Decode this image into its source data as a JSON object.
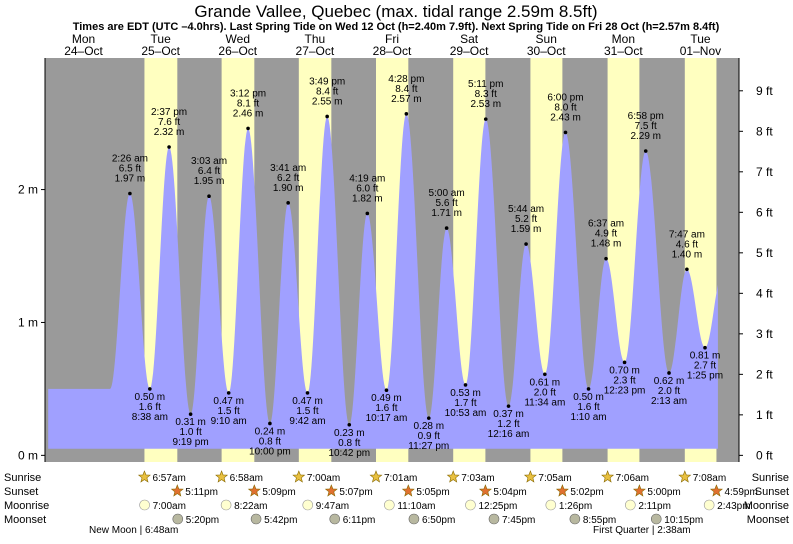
{
  "chart_data": {
    "type": "area",
    "title": "Grande Vallee, Quebec (max. tidal range 2.59m 8.5ft)",
    "subtitle": "Times are EDT (UTC –4.0hrs). Last Spring Tide on Wed 12 Oct (h=2.40m 7.9ft). Next Spring Tide on Fri 28 Oct (h=2.57m 8.4ft)",
    "ylabel_left": "m",
    "ylabel_right": "ft",
    "ylim_m": [
      -0.05,
      2.99
    ],
    "xlim_hours": [
      0,
      216
    ],
    "left_ticks": [
      "0 m",
      "1 m",
      "2 m"
    ],
    "left_tick_values": [
      0,
      1,
      2
    ],
    "right_ticks": [
      "0 ft",
      "1 ft",
      "2 ft",
      "3 ft",
      "4 ft",
      "5 ft",
      "6 ft",
      "7 ft",
      "8 ft",
      "9 ft"
    ],
    "right_tick_values": [
      0,
      1,
      2,
      3,
      4,
      5,
      6,
      7,
      8,
      9
    ],
    "days": [
      {
        "dow": "Mon",
        "date": "24–Oct",
        "color": "red"
      },
      {
        "dow": "Tue",
        "date": "25–Oct",
        "color": "black"
      },
      {
        "dow": "Wed",
        "date": "26–Oct",
        "color": "black"
      },
      {
        "dow": "Thu",
        "date": "27–Oct",
        "color": "black"
      },
      {
        "dow": "Fri",
        "date": "28–Oct",
        "color": "black"
      },
      {
        "dow": "Sat",
        "date": "29–Oct",
        "color": "black"
      },
      {
        "dow": "Sun",
        "date": "30–Oct",
        "color": "red"
      },
      {
        "dow": "Mon",
        "date": "31–Oct",
        "color": "black"
      },
      {
        "dow": "Tue",
        "date": "01–Nov",
        "color": "black"
      }
    ],
    "tides": [
      {
        "hour": 26.43,
        "m": 1.97,
        "time": "2:26 am",
        "ft": "6.5 ft",
        "mlabel": "1.97 m",
        "type": "high"
      },
      {
        "hour": 32.63,
        "m": 0.5,
        "time": "8:38 am",
        "ft": "1.6 ft",
        "mlabel": "0.50 m",
        "type": "low"
      },
      {
        "hour": 38.62,
        "m": 2.32,
        "time": "2:37 pm",
        "ft": "7.6 ft",
        "mlabel": "2.32 m",
        "type": "high"
      },
      {
        "hour": 45.32,
        "m": 0.31,
        "time": "9:19 pm",
        "ft": "1.0 ft",
        "mlabel": "0.31 m",
        "type": "low"
      },
      {
        "hour": 51.05,
        "m": 1.95,
        "time": "3:03 am",
        "ft": "6.4 ft",
        "mlabel": "1.95 m",
        "type": "high"
      },
      {
        "hour": 57.17,
        "m": 0.47,
        "time": "9:10 am",
        "ft": "1.5 ft",
        "mlabel": "0.47 m",
        "type": "low"
      },
      {
        "hour": 63.2,
        "m": 2.46,
        "time": "3:12 pm",
        "ft": "8.1 ft",
        "mlabel": "2.46 m",
        "type": "high"
      },
      {
        "hour": 70.0,
        "m": 0.24,
        "time": "10:00 pm",
        "ft": "0.8 ft",
        "mlabel": "0.24 m",
        "type": "low"
      },
      {
        "hour": 75.68,
        "m": 1.9,
        "time": "3:41 am",
        "ft": "6.2 ft",
        "mlabel": "1.90 m",
        "type": "high"
      },
      {
        "hour": 81.7,
        "m": 0.47,
        "time": "9:42 am",
        "ft": "1.5 ft",
        "mlabel": "0.47 m",
        "type": "low"
      },
      {
        "hour": 87.82,
        "m": 2.55,
        "time": "3:49 pm",
        "ft": "8.4 ft",
        "mlabel": "2.55 m",
        "type": "high"
      },
      {
        "hour": 94.7,
        "m": 0.23,
        "time": "10:42 pm",
        "ft": "0.8 ft",
        "mlabel": "0.23 m",
        "type": "low"
      },
      {
        "hour": 100.32,
        "m": 1.82,
        "time": "4:19 am",
        "ft": "6.0 ft",
        "mlabel": "1.82 m",
        "type": "high"
      },
      {
        "hour": 106.28,
        "m": 0.49,
        "time": "10:17 am",
        "ft": "1.6 ft",
        "mlabel": "0.49 m",
        "type": "low"
      },
      {
        "hour": 112.47,
        "m": 2.57,
        "time": "4:28 pm",
        "ft": "8.4 ft",
        "mlabel": "2.57 m",
        "type": "high"
      },
      {
        "hour": 119.45,
        "m": 0.28,
        "time": "11:27 pm",
        "ft": "0.9 ft",
        "mlabel": "0.28 m",
        "type": "low"
      },
      {
        "hour": 125.0,
        "m": 1.71,
        "time": "5:00 am",
        "ft": "5.6 ft",
        "mlabel": "1.71 m",
        "type": "high"
      },
      {
        "hour": 130.88,
        "m": 0.53,
        "time": "10:53 am",
        "ft": "1.7 ft",
        "mlabel": "0.53 m",
        "type": "low"
      },
      {
        "hour": 137.18,
        "m": 2.53,
        "time": "5:11 pm",
        "ft": "8.3 ft",
        "mlabel": "2.53 m",
        "type": "high"
      },
      {
        "hour": 144.27,
        "m": 0.37,
        "time": "12:16 am",
        "ft": "1.2 ft",
        "mlabel": "0.37 m",
        "type": "low"
      },
      {
        "hour": 149.73,
        "m": 1.59,
        "time": "5:44 am",
        "ft": "5.2 ft",
        "mlabel": "1.59 m",
        "type": "high"
      },
      {
        "hour": 155.57,
        "m": 0.61,
        "time": "11:34 am",
        "ft": "2.0 ft",
        "mlabel": "0.61 m",
        "type": "low"
      },
      {
        "hour": 162.0,
        "m": 2.43,
        "time": "6:00 pm",
        "ft": "8.0 ft",
        "mlabel": "2.43 m",
        "type": "high"
      },
      {
        "hour": 169.17,
        "m": 0.5,
        "time": "1:10 am",
        "ft": "1.6 ft",
        "mlabel": "0.50 m",
        "type": "low"
      },
      {
        "hour": 174.62,
        "m": 1.48,
        "time": "6:37 am",
        "ft": "4.9 ft",
        "mlabel": "1.48 m",
        "type": "high"
      },
      {
        "hour": 180.38,
        "m": 0.7,
        "time": "12:23 pm",
        "ft": "2.3 ft",
        "mlabel": "0.70 m",
        "type": "low"
      },
      {
        "hour": 186.97,
        "m": 2.29,
        "time": "6:58 pm",
        "ft": "7.5 ft",
        "mlabel": "2.29 m",
        "type": "high"
      },
      {
        "hour": 194.22,
        "m": 0.62,
        "time": "2:13 am",
        "ft": "2.0 ft",
        "mlabel": "0.62 m",
        "type": "low"
      },
      {
        "hour": 199.78,
        "m": 1.4,
        "time": "7:47 am",
        "ft": "4.6 ft",
        "mlabel": "1.40 m",
        "type": "high"
      },
      {
        "hour": 205.42,
        "m": 0.81,
        "time": "1:25 pm",
        "ft": "2.7 ft",
        "mlabel": "0.81 m",
        "type": "low"
      }
    ],
    "daylight": [
      {
        "sunrise_hour": 30.95,
        "sunset_hour": 41.18,
        "sunrise": "6:57am",
        "sunset": "5:11pm",
        "moonrise": "7:00am",
        "moonset": "5:20pm",
        "moonrise_hour": 31.0,
        "moonset_hour": 41.33
      },
      {
        "sunrise_hour": 54.97,
        "sunset_hour": 65.15,
        "sunrise": "6:58am",
        "sunset": "5:09pm",
        "moonrise": "8:22am",
        "moonset": "5:42pm",
        "moonrise_hour": 56.37,
        "moonset_hour": 65.7
      },
      {
        "sunrise_hour": 79.0,
        "sunset_hour": 89.12,
        "sunrise": "7:00am",
        "sunset": "5:07pm",
        "moonrise": "9:47am",
        "moonset": "6:11pm",
        "moonrise_hour": 81.78,
        "moonset_hour": 90.18
      },
      {
        "sunrise_hour": 103.02,
        "sunset_hour": 113.08,
        "sunrise": "7:01am",
        "sunset": "5:05pm",
        "moonrise": "11:10am",
        "moonset": "6:50pm",
        "moonrise_hour": 107.17,
        "moonset_hour": 114.83
      },
      {
        "sunrise_hour": 127.05,
        "sunset_hour": 137.07,
        "sunrise": "7:03am",
        "sunset": "5:04pm",
        "moonrise": "12:25pm",
        "moonset": "7:45pm",
        "moonrise_hour": 132.42,
        "moonset_hour": 139.75
      },
      {
        "sunrise_hour": 151.08,
        "sunset_hour": 161.03,
        "sunrise": "7:05am",
        "sunset": "5:02pm",
        "moonrise": "1:26pm",
        "moonset": "8:55pm",
        "moonrise_hour": 157.43,
        "moonset_hour": 164.92
      },
      {
        "sunrise_hour": 175.1,
        "sunset_hour": 185.0,
        "sunrise": "7:06am",
        "sunset": "5:00pm",
        "moonrise": "2:11pm",
        "moonset": "10:15pm",
        "moonrise_hour": 182.18,
        "moonset_hour": 190.25
      },
      {
        "sunrise_hour": 199.13,
        "sunset_hour": 208.98,
        "sunrise": "7:08am",
        "sunset": "4:59pm",
        "moonrise": "2:43pm",
        "moonset": "",
        "moonrise_hour": 206.72,
        "moonset_hour": null
      }
    ],
    "moon_phases": [
      {
        "label": "New Moon | 6:48am"
      },
      {
        "label": "First Quarter | 2:38am"
      }
    ],
    "row_labels": {
      "sunrise": "Sunrise",
      "sunset": "Sunset",
      "moonrise": "Moonrise",
      "moonset": "Moonset"
    },
    "colors": {
      "night": "#9a9a9a",
      "day": "#ffffc0",
      "water": "#a0a0ff",
      "red": "#e00000",
      "sun_fill": "#e8c040",
      "sunset_fill": "#e07030",
      "moonrise_fill": "#ffffd0",
      "moonset_fill": "#b8b8a0"
    }
  }
}
